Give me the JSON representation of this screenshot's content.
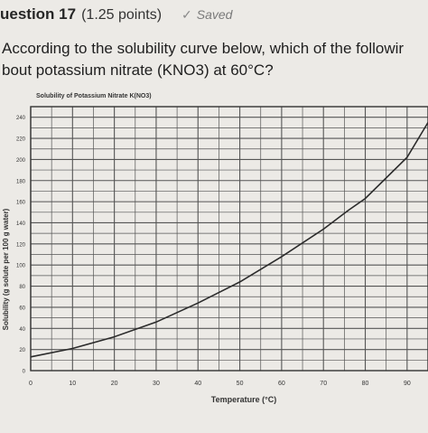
{
  "question": {
    "title": "uestion 17",
    "points": "(1.25 points)",
    "status": "Saved",
    "status_icon": "check-icon",
    "text_line1": "According to the solubility curve below, which of the followir",
    "text_line2": "bout potassium nitrate (KNO3) at 60°C?"
  },
  "chart_data": {
    "type": "line",
    "title": "Solubility of Potassium Nitrate K(NO3)",
    "xlabel": "Temperature (°C)",
    "ylabel": "Solubility (g solute per 100 g water)",
    "xlim": [
      0,
      95
    ],
    "ylim": [
      0,
      250
    ],
    "x_ticks": [
      0,
      10,
      20,
      30,
      40,
      50,
      60,
      70,
      80,
      90
    ],
    "x_tick_labels": [
      "0",
      "10",
      "20",
      "30",
      "40",
      "50",
      "60",
      "70",
      "80",
      "90"
    ],
    "y_ticks": [
      0,
      20,
      40,
      60,
      80,
      100,
      120,
      140,
      160,
      180,
      200,
      220,
      240
    ],
    "y_tick_labels": [
      "0",
      "20",
      "40",
      "60",
      "80",
      "100",
      "120",
      "140",
      "160",
      "180",
      "200",
      "220",
      "240"
    ],
    "grid": true,
    "series": [
      {
        "x": [
          0,
          10,
          20,
          30,
          40,
          50,
          60,
          70,
          76,
          80,
          90,
          95
        ],
        "y": [
          13,
          21,
          32,
          46,
          64,
          84,
          108,
          134,
          152,
          163,
          202,
          235
        ],
        "color": "#2b2b2b"
      }
    ]
  }
}
